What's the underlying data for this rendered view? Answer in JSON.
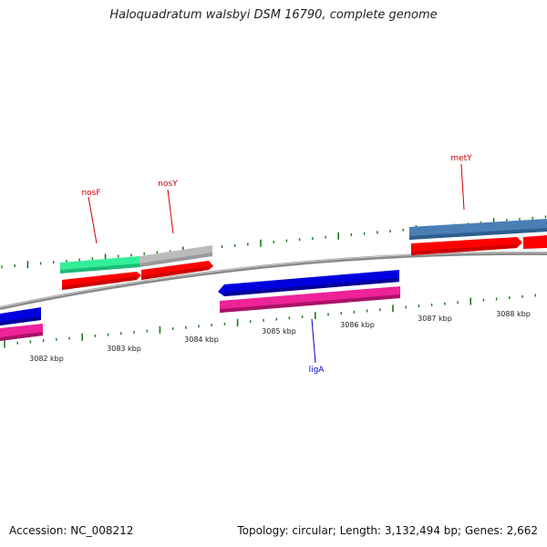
{
  "title": "Haloquadratum walsbyi DSM 16790, complete genome",
  "footer": {
    "accession": "Accession: NC_008212",
    "topology": "Topology: circular; Length: 3,132,494 bp; Genes: 2,662"
  },
  "colors": {
    "backbone": "#8a8a8a",
    "ticks": "#1a7a1a",
    "gene_label_forward": "#cc0000",
    "gene_label_reverse": "#0000cc",
    "cds": "#ff0000",
    "gene_green": "#33ee99",
    "gene_gray": "#bbbbbb",
    "gene_blue": "#0000dd",
    "gene_pink": "#ee2299",
    "gene_steel": "#4a7fb5"
  },
  "ruler": [
    "3082 kbp",
    "3083 kbp",
    "3084 kbp",
    "3085 kbp",
    "3086 kbp",
    "3087 kbp",
    "3088 kbp"
  ],
  "genes": [
    {
      "name": "nosF",
      "strand": "forward"
    },
    {
      "name": "nosY",
      "strand": "forward"
    },
    {
      "name": "metY",
      "strand": "forward"
    },
    {
      "name": "ligA",
      "strand": "reverse"
    }
  ]
}
